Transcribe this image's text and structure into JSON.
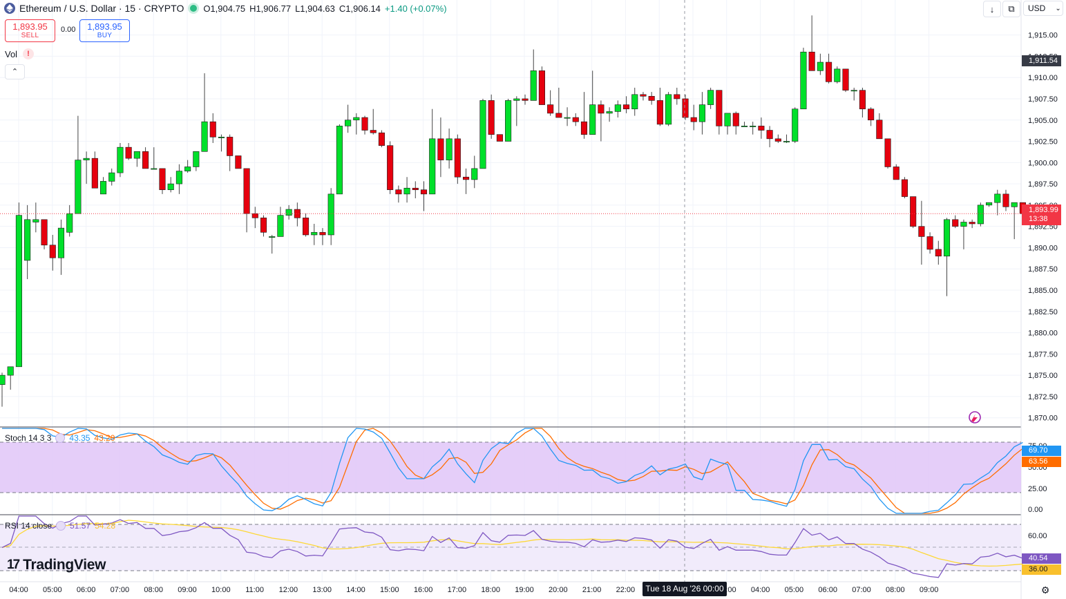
{
  "header": {
    "symbol": "Ethereum / U.S. Dollar · 15 · CRYPTO",
    "open": "O1,904.75",
    "high": "H1,906.77",
    "low": "L1,904.63",
    "close": "C1,906.14",
    "change": "+1.40 (+0.07%)"
  },
  "trade": {
    "sell_price": "1,893.95",
    "sell_label": "SELL",
    "spread": "0.00",
    "buy_price": "1,893.95",
    "buy_label": "BUY"
  },
  "volume": {
    "label": "Vol",
    "warning": "!"
  },
  "toolbar": {
    "currency": "USD",
    "icons": [
      "download-icon",
      "fullscreen-icon",
      "chevron-down-icon"
    ]
  },
  "price_scale": {
    "labels": [
      "1,915.00",
      "1,912.50",
      "1,910.00",
      "1,907.50",
      "1,905.00",
      "1,902.50",
      "1,900.00",
      "1,897.50",
      "1,895.00",
      "1,892.50",
      "1,890.00",
      "1,887.50",
      "1,885.00",
      "1,882.50",
      "1,880.00",
      "1,877.50",
      "1,875.00",
      "1,872.50",
      "1,870.00"
    ],
    "crosshair_price": "1,911.54",
    "last_price": "1,893.99",
    "countdown": "13:38"
  },
  "time_axis": {
    "labels": [
      "04:00",
      "05:00",
      "06:00",
      "07:00",
      "08:00",
      "09:00",
      "10:00",
      "11:00",
      "12:00",
      "13:00",
      "14:00",
      "15:00",
      "16:00",
      "17:00",
      "18:00",
      "19:00",
      "20:00",
      "21:00",
      "22:00",
      "00:00",
      "02:00",
      "03:00",
      "04:00",
      "05:00",
      "06:00",
      "07:00",
      "08:00",
      "09:00"
    ],
    "crosshair_date": "Tue 18 Aug '26   00:00"
  },
  "stoch": {
    "name": "Stoch 14 3 3",
    "k_value": "43.35",
    "d_value": "43.20",
    "scale_labels": [
      "75.00",
      "50.00",
      "25.00",
      "0.00"
    ],
    "k_last": "69.70",
    "d_last": "63.56",
    "colors": {
      "k": "#2196f3",
      "d": "#ff6d00",
      "band": "#e1c6f8"
    }
  },
  "rsi": {
    "name": "RSI 14 close",
    "value": "51.57",
    "ma_value": "54.28",
    "scale_label": "60.00",
    "last": "40.54",
    "ma_last": "36.00",
    "colors": {
      "rsi": "#7e57c2",
      "ma": "#fdd835",
      "band": "#f1ebfb"
    }
  },
  "branding": {
    "name": "TradingView",
    "mark": "17"
  },
  "colors": {
    "up": "#00e02b",
    "down": "#e6000e",
    "wick": "#444444"
  },
  "chart_data": {
    "type": "candlestick",
    "interval": "15",
    "ylim": [
      1869,
      1917
    ],
    "candles": [
      [
        1873.9,
        1875.3,
        1871.3,
        1875.0
      ],
      [
        1875.0,
        1876.0,
        1873.3,
        1876.0
      ],
      [
        1876.0,
        1895.3,
        1876.0,
        1893.8
      ],
      [
        1888.5,
        1895.0,
        1886.3,
        1893.3
      ],
      [
        1893.0,
        1895.3,
        1891.8,
        1893.3
      ],
      [
        1893.3,
        1893.3,
        1889.8,
        1890.3
      ],
      [
        1890.3,
        1891.5,
        1887.3,
        1888.8
      ],
      [
        1888.8,
        1893.3,
        1886.8,
        1892.3
      ],
      [
        1891.8,
        1895.0,
        1891.3,
        1894.0
      ],
      [
        1894.0,
        1905.5,
        1894.0,
        1900.3
      ],
      [
        1900.3,
        1901.3,
        1897.5,
        1900.5
      ],
      [
        1900.5,
        1901.3,
        1897.0,
        1897.0
      ],
      [
        1896.3,
        1898.3,
        1896.3,
        1897.8
      ],
      [
        1897.8,
        1899.3,
        1897.3,
        1898.8
      ],
      [
        1898.8,
        1902.3,
        1898.3,
        1901.8
      ],
      [
        1901.8,
        1902.3,
        1900.3,
        1900.5
      ],
      [
        1900.5,
        1901.3,
        1899.5,
        1901.3
      ],
      [
        1901.3,
        1901.8,
        1899.3,
        1899.3
      ],
      [
        1899.3,
        1901.8,
        1899.3,
        1899.3
      ],
      [
        1899.3,
        1899.3,
        1896.3,
        1896.8
      ],
      [
        1896.8,
        1898.3,
        1896.5,
        1897.5
      ],
      [
        1897.5,
        1899.8,
        1896.3,
        1899.0
      ],
      [
        1899.0,
        1900.3,
        1898.8,
        1899.5
      ],
      [
        1899.5,
        1901.3,
        1899.0,
        1901.3
      ],
      [
        1901.3,
        1910.5,
        1901.3,
        1904.8
      ],
      [
        1904.8,
        1905.8,
        1902.3,
        1903.0
      ],
      [
        1903.0,
        1903.3,
        1901.3,
        1903.0
      ],
      [
        1903.0,
        1903.3,
        1899.0,
        1900.8
      ],
      [
        1900.8,
        1900.8,
        1899.3,
        1899.3
      ],
      [
        1899.3,
        1899.3,
        1891.8,
        1894.0
      ],
      [
        1894.0,
        1894.8,
        1892.3,
        1893.5
      ],
      [
        1893.5,
        1893.8,
        1891.3,
        1891.8
      ],
      [
        1891.3,
        1891.5,
        1889.3,
        1891.3
      ],
      [
        1891.3,
        1894.8,
        1891.3,
        1893.8
      ],
      [
        1893.8,
        1895.0,
        1893.3,
        1894.5
      ],
      [
        1894.5,
        1895.3,
        1892.5,
        1893.5
      ],
      [
        1893.5,
        1894.0,
        1891.3,
        1891.5
      ],
      [
        1891.5,
        1892.8,
        1890.3,
        1891.8
      ],
      [
        1891.8,
        1892.3,
        1890.3,
        1891.5
      ],
      [
        1891.5,
        1897.0,
        1890.3,
        1896.3
      ],
      [
        1896.3,
        1904.5,
        1896.3,
        1904.3
      ],
      [
        1904.3,
        1906.8,
        1903.5,
        1905.0
      ],
      [
        1905.0,
        1905.8,
        1903.3,
        1905.3
      ],
      [
        1905.3,
        1905.5,
        1903.3,
        1903.8
      ],
      [
        1903.8,
        1906.3,
        1903.3,
        1903.5
      ],
      [
        1903.5,
        1903.8,
        1901.8,
        1902.0
      ],
      [
        1902.0,
        1902.5,
        1896.3,
        1896.8
      ],
      [
        1896.8,
        1897.3,
        1895.3,
        1896.3
      ],
      [
        1896.3,
        1898.3,
        1895.3,
        1897.0
      ],
      [
        1897.0,
        1897.8,
        1895.8,
        1896.8
      ],
      [
        1896.8,
        1897.8,
        1894.3,
        1896.3
      ],
      [
        1896.3,
        1906.3,
        1896.3,
        1902.8
      ],
      [
        1902.8,
        1905.3,
        1898.3,
        1900.3
      ],
      [
        1900.3,
        1904.0,
        1899.3,
        1902.8
      ],
      [
        1902.8,
        1903.3,
        1897.5,
        1898.3
      ],
      [
        1898.3,
        1899.3,
        1896.3,
        1898.0
      ],
      [
        1898.0,
        1900.8,
        1897.0,
        1899.3
      ],
      [
        1899.3,
        1907.5,
        1899.3,
        1907.3
      ],
      [
        1907.3,
        1908.0,
        1902.8,
        1903.3
      ],
      [
        1903.3,
        1903.3,
        1902.5,
        1902.5
      ],
      [
        1902.5,
        1907.5,
        1902.5,
        1907.3
      ],
      [
        1907.3,
        1907.8,
        1904.3,
        1907.5
      ],
      [
        1907.5,
        1908.0,
        1906.8,
        1907.3
      ],
      [
        1907.3,
        1913.3,
        1907.3,
        1910.8
      ],
      [
        1910.8,
        1911.3,
        1906.8,
        1906.8
      ],
      [
        1906.8,
        1908.5,
        1905.5,
        1905.8
      ],
      [
        1905.8,
        1908.8,
        1905.5,
        1905.3
      ],
      [
        1905.3,
        1906.5,
        1904.3,
        1905.3
      ],
      [
        1905.3,
        1905.8,
        1904.3,
        1904.8
      ],
      [
        1904.8,
        1908.3,
        1902.8,
        1903.3
      ],
      [
        1903.3,
        1910.8,
        1903.3,
        1906.8
      ],
      [
        1906.8,
        1907.3,
        1902.5,
        1905.8
      ],
      [
        1905.8,
        1906.5,
        1904.8,
        1906.0
      ],
      [
        1906.0,
        1907.3,
        1905.3,
        1906.8
      ],
      [
        1906.8,
        1907.8,
        1905.8,
        1906.3
      ],
      [
        1906.3,
        1908.8,
        1905.5,
        1908.0
      ],
      [
        1908.0,
        1908.3,
        1907.3,
        1907.8
      ],
      [
        1907.8,
        1908.3,
        1906.8,
        1907.3
      ],
      [
        1907.3,
        1908.8,
        1904.3,
        1904.5
      ],
      [
        1904.5,
        1908.3,
        1904.3,
        1908.0
      ],
      [
        1908.0,
        1908.8,
        1906.8,
        1907.5
      ],
      [
        1907.5,
        1908.0,
        1905.0,
        1905.3
      ],
      [
        1905.3,
        1906.8,
        1903.8,
        1904.8
      ],
      [
        1904.8,
        1908.3,
        1903.3,
        1906.8
      ],
      [
        1906.8,
        1908.8,
        1906.3,
        1908.5
      ],
      [
        1908.5,
        1908.5,
        1903.3,
        1904.3
      ],
      [
        1904.3,
        1905.5,
        1903.3,
        1905.8
      ],
      [
        1905.8,
        1906.0,
        1903.3,
        1904.3
      ],
      [
        1904.3,
        1904.8,
        1904.3,
        1904.3
      ],
      [
        1904.3,
        1904.8,
        1903.3,
        1904.3
      ],
      [
        1904.3,
        1905.3,
        1902.8,
        1903.8
      ],
      [
        1903.8,
        1904.3,
        1901.8,
        1902.8
      ],
      [
        1902.8,
        1903.3,
        1902.3,
        1902.5
      ],
      [
        1902.5,
        1903.3,
        1902.3,
        1902.5
      ],
      [
        1902.5,
        1906.5,
        1902.3,
        1906.3
      ],
      [
        1906.3,
        1913.5,
        1906.3,
        1913.0
      ],
      [
        1913.0,
        1917.3,
        1910.8,
        1910.8
      ],
      [
        1910.8,
        1912.8,
        1910.3,
        1911.8
      ],
      [
        1911.8,
        1912.8,
        1909.3,
        1909.5
      ],
      [
        1909.5,
        1911.3,
        1909.3,
        1911.0
      ],
      [
        1911.0,
        1911.0,
        1908.3,
        1908.5
      ],
      [
        1908.5,
        1908.8,
        1907.3,
        1908.5
      ],
      [
        1908.5,
        1908.8,
        1905.3,
        1906.3
      ],
      [
        1906.3,
        1906.5,
        1904.3,
        1905.0
      ],
      [
        1905.0,
        1905.8,
        1902.8,
        1902.8
      ],
      [
        1902.8,
        1902.8,
        1899.3,
        1899.5
      ],
      [
        1899.5,
        1899.8,
        1898.3,
        1898.0
      ],
      [
        1898.0,
        1898.3,
        1895.8,
        1896.0
      ],
      [
        1896.0,
        1896.0,
        1892.3,
        1892.5
      ],
      [
        1892.5,
        1895.5,
        1888.0,
        1891.3
      ],
      [
        1891.3,
        1891.8,
        1889.3,
        1889.8
      ],
      [
        1889.8,
        1890.8,
        1888.0,
        1889.0
      ],
      [
        1889.0,
        1893.5,
        1884.3,
        1893.3
      ],
      [
        1893.3,
        1893.8,
        1892.3,
        1892.5
      ],
      [
        1892.5,
        1893.3,
        1889.8,
        1893.0
      ],
      [
        1893.0,
        1893.3,
        1892.3,
        1892.8
      ],
      [
        1892.8,
        1895.3,
        1892.5,
        1895.0
      ],
      [
        1895.0,
        1895.3,
        1894.8,
        1895.3
      ],
      [
        1895.3,
        1896.8,
        1893.8,
        1896.3
      ],
      [
        1896.3,
        1896.8,
        1894.3,
        1894.8
      ],
      [
        1894.8,
        1895.3,
        1891.0,
        1895.3
      ],
      [
        1895.3,
        1895.3,
        1893.8,
        1894.0
      ]
    ]
  }
}
